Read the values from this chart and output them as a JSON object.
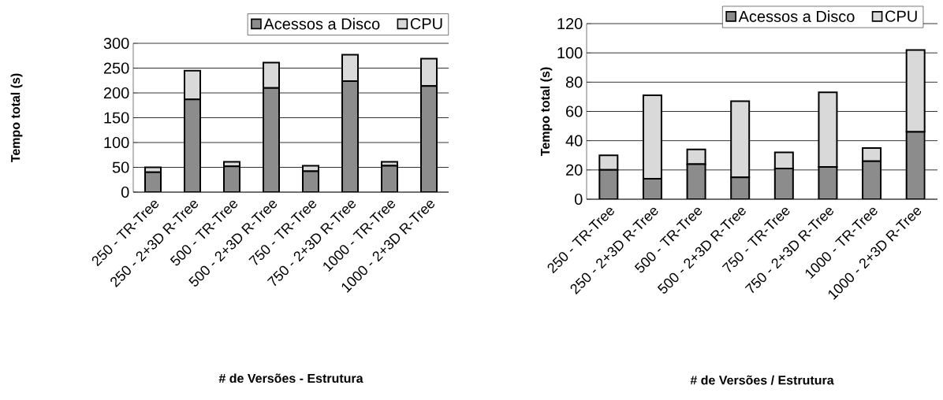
{
  "chart_data": [
    {
      "type": "bar",
      "stacked": true,
      "xlabel": "# de Versões - Estrutura",
      "ylabel": "Tempo total (s)",
      "categories": [
        "250 - TR-Tree",
        "250 - 2+3D R-Tree",
        "500 - TR-Tree",
        "500 - 2+3D R-Tree",
        "750 - TR-Tree",
        "750 - 2+3D R-Tree",
        "1000 - TR-Tree",
        "1000 - 2+3D R-Tree"
      ],
      "series": [
        {
          "name": "Acessos a Disco",
          "color": "#8c8c8c",
          "values": [
            40,
            187,
            52,
            210,
            42,
            224,
            53,
            214
          ]
        },
        {
          "name": "CPU",
          "color": "#d9d9d9",
          "values": [
            10,
            58,
            9,
            51,
            11,
            53,
            8,
            55
          ]
        }
      ],
      "ylim": [
        0,
        300
      ],
      "yticks": [
        0,
        50,
        100,
        150,
        200,
        250,
        300
      ],
      "grid": "y",
      "legend": "top right"
    },
    {
      "type": "bar",
      "stacked": true,
      "xlabel": "# de Versões / Estrutura",
      "ylabel": "Tempo total (s)",
      "categories": [
        "250 - TR-Tree",
        "250 - 2+3D R-Tree",
        "500 - TR-Tree",
        "500 - 2+3D R-Tree",
        "750 - TR-Tree",
        "750 - 2+3D R-Tree",
        "1000 - TR-Tree",
        "1000 - 2+3D R-Tree"
      ],
      "series": [
        {
          "name": "Acessos a Disco",
          "color": "#8c8c8c",
          "values": [
            20,
            14,
            24,
            15,
            21,
            22,
            26,
            46
          ]
        },
        {
          "name": "CPU",
          "color": "#d9d9d9",
          "values": [
            10,
            57,
            10,
            52,
            11,
            51,
            9,
            56
          ]
        }
      ],
      "ylim": [
        0,
        120
      ],
      "yticks": [
        0,
        20,
        40,
        60,
        80,
        100,
        120
      ],
      "grid": "y",
      "legend": "top right"
    }
  ]
}
